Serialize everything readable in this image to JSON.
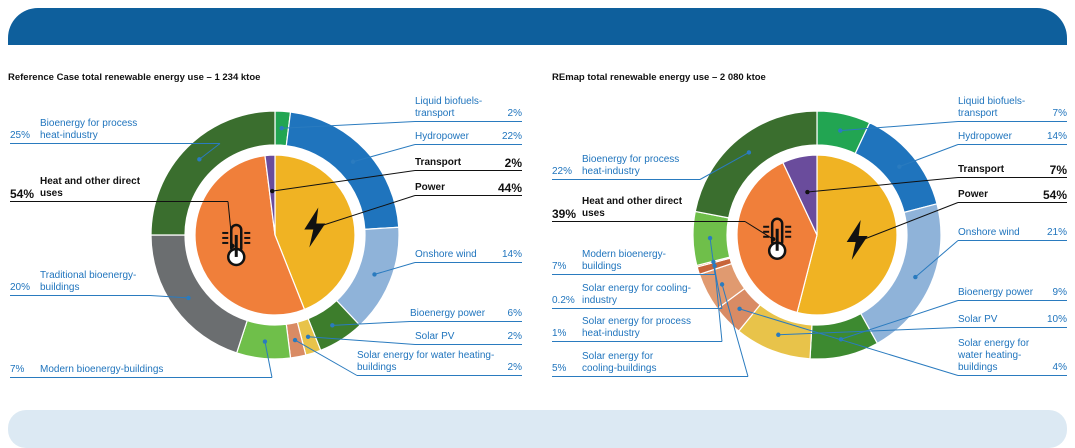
{
  "chart_data": [
    {
      "type": "donut",
      "title": "Reference Case total renewable energy use – 1 234 ktoe",
      "categories": [
        "Liquid biofuels-transport",
        "Hydropower",
        "Onshore wind",
        "Bioenergy power",
        "Solar PV",
        "Solar energy for water heating-buildings",
        "Modern bioenergy-buildings",
        "Traditional bioenergy-buildings",
        "Bioenergy for process heat-industry"
      ],
      "values": [
        2,
        22,
        14,
        6,
        2,
        2,
        7,
        20,
        25
      ],
      "value_labels": [
        "2%",
        "22%",
        "14%",
        "6%",
        "2%",
        "2%",
        "7%",
        "20%",
        "25%"
      ],
      "colors": [
        "#22a552",
        "#1f74bd",
        "#8fb3d9",
        "#3d7d2c",
        "#e8c34a",
        "#d98b64",
        "#6fbf4a",
        "#6b6e70",
        "#3a6e2e"
      ],
      "inner": {
        "categories": [
          "Power",
          "Heat and other direct uses",
          "Transport"
        ],
        "values": [
          44,
          54,
          2
        ],
        "value_labels": [
          "44%",
          "54%",
          "2%"
        ],
        "colors": [
          "#f0b323",
          "#f07f3a",
          "#6a4c9c"
        ]
      }
    },
    {
      "type": "donut",
      "title": "REmap total renewable energy use – 2 080 ktoe",
      "categories": [
        "Liquid biofuels-transport",
        "Hydropower",
        "Onshore wind",
        "Bioenergy power",
        "Solar PV",
        "Solar energy for water heating-buildings",
        "Solar energy for cooling-buildings",
        "Solar energy for process heat-industry",
        "Solar energy for cooling-industry",
        "Modern bioenergy-buildings",
        "Bioenergy for process heat-industry"
      ],
      "values": [
        7,
        14,
        21,
        9,
        10,
        4,
        5,
        1,
        0.2,
        7,
        22
      ],
      "value_labels": [
        "7%",
        "14%",
        "21%",
        "9%",
        "10%",
        "4%",
        "5%",
        "1%",
        "0.2%",
        "7%",
        "22%"
      ],
      "colors": [
        "#22a552",
        "#1f74bd",
        "#8fb3d9",
        "#3d8a30",
        "#e8c34a",
        "#d98b64",
        "#e09a70",
        "#c7653a",
        "#e87d2c",
        "#6fbf4a",
        "#3a6e2e"
      ],
      "inner": {
        "categories": [
          "Power",
          "Heat and other direct uses",
          "Transport"
        ],
        "values": [
          54,
          39,
          7
        ],
        "value_labels": [
          "54%",
          "39%",
          "7%"
        ],
        "colors": [
          "#f0b323",
          "#f07f3a",
          "#6a4c9c"
        ]
      }
    }
  ]
}
